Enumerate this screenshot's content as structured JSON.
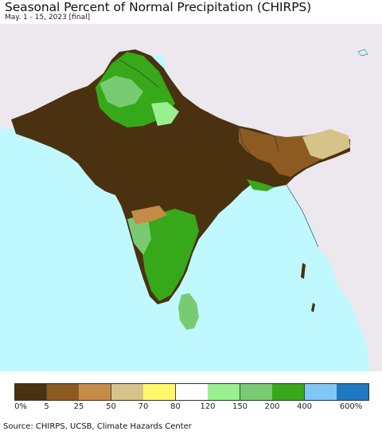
{
  "title": "Seasonal Percent of Normal Precipitation (CHIRPS)",
  "subtitle": "May. 1 - 15, 2023 [final]",
  "legend": {
    "colors": [
      "#4a3210",
      "#8d5a22",
      "#c48c48",
      "#d6c38a",
      "#fff86a",
      "#ffffff",
      "#99f08f",
      "#78cb72",
      "#37a81a",
      "#80c6f7",
      "#1f78c0"
    ],
    "labels": [
      "0%",
      "5",
      "25",
      "50",
      "70",
      "80",
      "120",
      "150",
      "200",
      "400",
      "600%"
    ]
  },
  "source": "Source: CHIRPS, UCSB, Climate Hazards Center"
}
